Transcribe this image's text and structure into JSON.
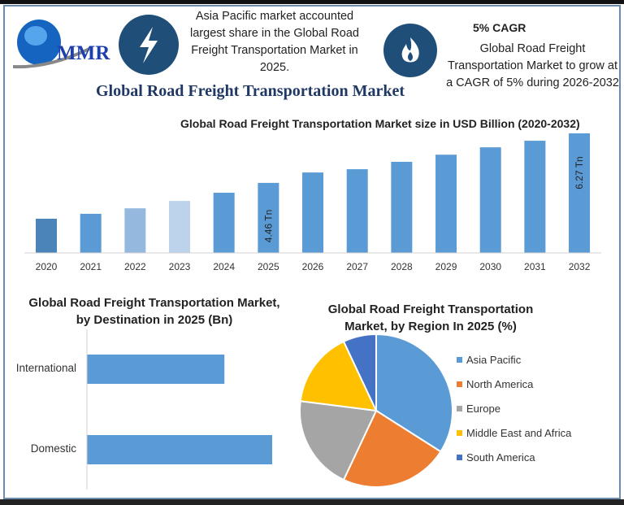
{
  "logo": {
    "text": "MMR"
  },
  "highlights": [
    {
      "icon": "lightning-icon",
      "text": "Asia Pacific market accounted largest share in the Global Road Freight Transportation Market in 2025."
    },
    {
      "icon": "flame-icon",
      "heading": "5% CAGR",
      "text": "Global Road Freight Transportation Market to grow at a CAGR of 5% during 2026-2032"
    }
  ],
  "title": "Global Road Freight Transportation Market",
  "colors": {
    "primary": "#5b9bd5",
    "dark": "#1f4e79",
    "title": "#1f3864"
  },
  "chart_data": [
    {
      "type": "bar",
      "title": "Global Road Freight Transportation Market size in USD Billion (2020-2032)",
      "categories": [
        "2020",
        "2021",
        "2022",
        "2023",
        "2024",
        "2025",
        "2026",
        "2027",
        "2028",
        "2029",
        "2030",
        "2031",
        "2032"
      ],
      "values": [
        3.15,
        3.33,
        3.53,
        3.8,
        4.1,
        4.46,
        4.84,
        4.96,
        5.23,
        5.49,
        5.76,
        6.0,
        6.27
      ],
      "bar_colors": [
        "#4a84b8",
        "#5b9bd5",
        "#95b8de",
        "#bdd3ec",
        "#5b9bd5",
        "#5b9bd5",
        "#5b9bd5",
        "#5b9bd5",
        "#5b9bd5",
        "#5b9bd5",
        "#5b9bd5",
        "#5b9bd5",
        "#5b9bd5"
      ],
      "data_labels": {
        "2025": "4.46 Tn",
        "2032": "6.27 Tn"
      },
      "ylim": [
        1.9,
        6.4
      ],
      "grid": false
    },
    {
      "type": "bar",
      "orientation": "horizontal",
      "title": "Global Road Freight Transportation Market, by Destination in 2025 (Bn)",
      "categories": [
        "International",
        "Domestic"
      ],
      "values": [
        42.6,
        57.4
      ],
      "color": "#5b9bd5"
    },
    {
      "type": "pie",
      "title": "Global Road Freight Transportation Market, by Region In 2025 (%)",
      "categories": [
        "Asia Pacific",
        "North America",
        "Europe",
        "Middle East and Africa",
        "South America"
      ],
      "values": [
        34,
        23,
        20,
        16,
        7
      ],
      "colors": [
        "#5b9bd5",
        "#ed7d31",
        "#a5a5a5",
        "#ffc000",
        "#4472c4"
      ],
      "legend": "right"
    }
  ]
}
